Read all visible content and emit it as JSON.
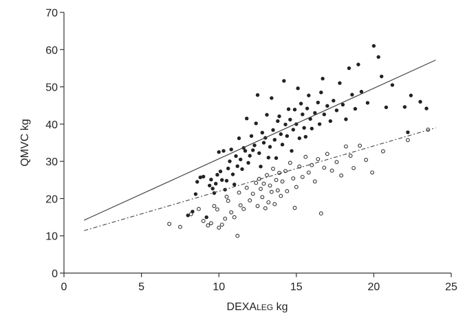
{
  "chart_data": {
    "type": "scatter",
    "title": "",
    "xlabel": "DEXA",
    "xlabel_sub": "LEG",
    "xlabel_unit": " kg",
    "ylabel": "QMVC kg",
    "xlim": [
      0,
      25
    ],
    "ylim": [
      0,
      70
    ],
    "xticks": [
      "0",
      "5",
      "10",
      "15",
      "20",
      "25"
    ],
    "yticks": [
      "0",
      "10",
      "20",
      "30",
      "40",
      "50",
      "60",
      "70"
    ],
    "grid": false,
    "legend": "none",
    "series": [
      {
        "marker": "filled",
        "color": "#222222",
        "points": [
          [
            8.0,
            15.5
          ],
          [
            8.3,
            16.5
          ],
          [
            8.5,
            21.2
          ],
          [
            8.6,
            24.5
          ],
          [
            8.8,
            25.7
          ],
          [
            9.0,
            25.9
          ],
          [
            9.2,
            15.0
          ],
          [
            9.4,
            23.5
          ],
          [
            9.5,
            25.1
          ],
          [
            9.6,
            22.7
          ],
          [
            9.7,
            21.5
          ],
          [
            9.8,
            24.0
          ],
          [
            9.9,
            26.4
          ],
          [
            10.0,
            32.5
          ],
          [
            10.1,
            27.3
          ],
          [
            10.2,
            25.0
          ],
          [
            10.3,
            32.8
          ],
          [
            10.4,
            22.4
          ],
          [
            10.5,
            24.8
          ],
          [
            10.6,
            28.1
          ],
          [
            10.7,
            30.0
          ],
          [
            10.8,
            33.2
          ],
          [
            10.9,
            26.5
          ],
          [
            11.0,
            23.8
          ],
          [
            11.1,
            31.4
          ],
          [
            11.2,
            28.7
          ],
          [
            11.3,
            36.2
          ],
          [
            11.4,
            30.5
          ],
          [
            11.5,
            27.9
          ],
          [
            11.6,
            33.6
          ],
          [
            11.7,
            32.8
          ],
          [
            11.8,
            41.5
          ],
          [
            11.9,
            29.6
          ],
          [
            12.0,
            31.5
          ],
          [
            12.1,
            36.8
          ],
          [
            12.2,
            33.0
          ],
          [
            12.3,
            34.3
          ],
          [
            12.4,
            40.2
          ],
          [
            12.5,
            47.8
          ],
          [
            12.6,
            32.2
          ],
          [
            12.7,
            28.6
          ],
          [
            12.8,
            37.7
          ],
          [
            12.9,
            35.0
          ],
          [
            13.0,
            36.3
          ],
          [
            13.1,
            42.5
          ],
          [
            13.2,
            31.0
          ],
          [
            13.3,
            33.9
          ],
          [
            13.4,
            47.0
          ],
          [
            13.5,
            38.4
          ],
          [
            13.6,
            35.8
          ],
          [
            13.7,
            30.9
          ],
          [
            13.8,
            40.8
          ],
          [
            13.9,
            42.1
          ],
          [
            14.0,
            37.3
          ],
          [
            14.1,
            34.5
          ],
          [
            14.2,
            51.6
          ],
          [
            14.3,
            39.9
          ],
          [
            14.4,
            36.8
          ],
          [
            14.5,
            44.0
          ],
          [
            14.6,
            41.2
          ],
          [
            14.7,
            32.8
          ],
          [
            14.8,
            38.5
          ],
          [
            14.9,
            43.9
          ],
          [
            15.0,
            40.0
          ],
          [
            15.1,
            49.6
          ],
          [
            15.2,
            36.2
          ],
          [
            15.3,
            45.5
          ],
          [
            15.4,
            42.6
          ],
          [
            15.5,
            39.0
          ],
          [
            15.6,
            36.6
          ],
          [
            15.7,
            44.2
          ],
          [
            15.8,
            47.7
          ],
          [
            15.9,
            41.4
          ],
          [
            16.0,
            38.8
          ],
          [
            16.2,
            43.0
          ],
          [
            16.4,
            45.8
          ],
          [
            16.5,
            40.0
          ],
          [
            16.6,
            48.5
          ],
          [
            16.7,
            52.2
          ],
          [
            16.8,
            42.6
          ],
          [
            17.0,
            44.9
          ],
          [
            17.2,
            40.8
          ],
          [
            17.4,
            46.3
          ],
          [
            17.6,
            43.7
          ],
          [
            17.8,
            51.0
          ],
          [
            18.0,
            45.2
          ],
          [
            18.2,
            41.3
          ],
          [
            18.4,
            55.0
          ],
          [
            18.6,
            47.9
          ],
          [
            18.8,
            44.1
          ],
          [
            19.0,
            56.0
          ],
          [
            19.2,
            48.7
          ],
          [
            19.6,
            45.7
          ],
          [
            20.0,
            61.0
          ],
          [
            20.3,
            58.0
          ],
          [
            20.5,
            52.8
          ],
          [
            20.8,
            44.5
          ],
          [
            21.2,
            50.5
          ],
          [
            22.0,
            44.6
          ],
          [
            22.2,
            37.8
          ],
          [
            22.4,
            47.7
          ],
          [
            23.0,
            46.0
          ],
          [
            23.4,
            44.2
          ]
        ]
      },
      {
        "marker": "open",
        "color": "#333333",
        "points": [
          [
            6.8,
            13.2
          ],
          [
            7.5,
            12.4
          ],
          [
            8.2,
            15.8
          ],
          [
            8.7,
            17.2
          ],
          [
            9.0,
            14.0
          ],
          [
            9.3,
            12.8
          ],
          [
            9.5,
            13.4
          ],
          [
            9.7,
            18.0
          ],
          [
            9.9,
            17.1
          ],
          [
            10.0,
            12.2
          ],
          [
            10.2,
            13.0
          ],
          [
            10.4,
            14.6
          ],
          [
            10.5,
            20.5
          ],
          [
            10.6,
            19.4
          ],
          [
            10.8,
            16.3
          ],
          [
            11.0,
            15.0
          ],
          [
            11.2,
            10.0
          ],
          [
            11.3,
            21.6
          ],
          [
            11.4,
            18.2
          ],
          [
            11.6,
            17.2
          ],
          [
            11.8,
            22.9
          ],
          [
            12.0,
            19.5
          ],
          [
            12.2,
            21.3
          ],
          [
            12.4,
            24.2
          ],
          [
            12.5,
            18.0
          ],
          [
            12.6,
            25.3
          ],
          [
            12.7,
            22.6
          ],
          [
            12.8,
            20.4
          ],
          [
            12.9,
            24.0
          ],
          [
            13.0,
            17.4
          ],
          [
            13.1,
            26.3
          ],
          [
            13.2,
            19.0
          ],
          [
            13.3,
            23.5
          ],
          [
            13.4,
            21.8
          ],
          [
            13.5,
            28.0
          ],
          [
            13.6,
            18.5
          ],
          [
            13.7,
            25.0
          ],
          [
            13.8,
            22.2
          ],
          [
            13.9,
            26.9
          ],
          [
            14.0,
            20.7
          ],
          [
            14.1,
            24.6
          ],
          [
            14.3,
            27.4
          ],
          [
            14.4,
            22.0
          ],
          [
            14.6,
            29.6
          ],
          [
            14.8,
            25.4
          ],
          [
            14.9,
            17.5
          ],
          [
            15.0,
            23.1
          ],
          [
            15.2,
            28.6
          ],
          [
            15.4,
            25.8
          ],
          [
            15.6,
            31.2
          ],
          [
            15.8,
            27.0
          ],
          [
            16.0,
            29.0
          ],
          [
            16.2,
            24.6
          ],
          [
            16.4,
            30.6
          ],
          [
            16.6,
            16.0
          ],
          [
            16.8,
            28.3
          ],
          [
            17.0,
            32.0
          ],
          [
            17.3,
            27.5
          ],
          [
            17.6,
            29.8
          ],
          [
            17.9,
            26.2
          ],
          [
            18.2,
            34.0
          ],
          [
            18.5,
            31.5
          ],
          [
            18.7,
            28.2
          ],
          [
            19.1,
            34.2
          ],
          [
            19.5,
            30.4
          ],
          [
            19.9,
            27.0
          ],
          [
            20.6,
            32.7
          ],
          [
            22.2,
            35.7
          ],
          [
            23.5,
            38.5
          ]
        ]
      }
    ],
    "fits": [
      {
        "style": "solid",
        "x": [
          1.3,
          24.0
        ],
        "y": [
          14.2,
          57.2
        ]
      },
      {
        "style": "dashed",
        "x": [
          1.3,
          24.0
        ],
        "y": [
          11.4,
          39.0
        ]
      }
    ]
  }
}
